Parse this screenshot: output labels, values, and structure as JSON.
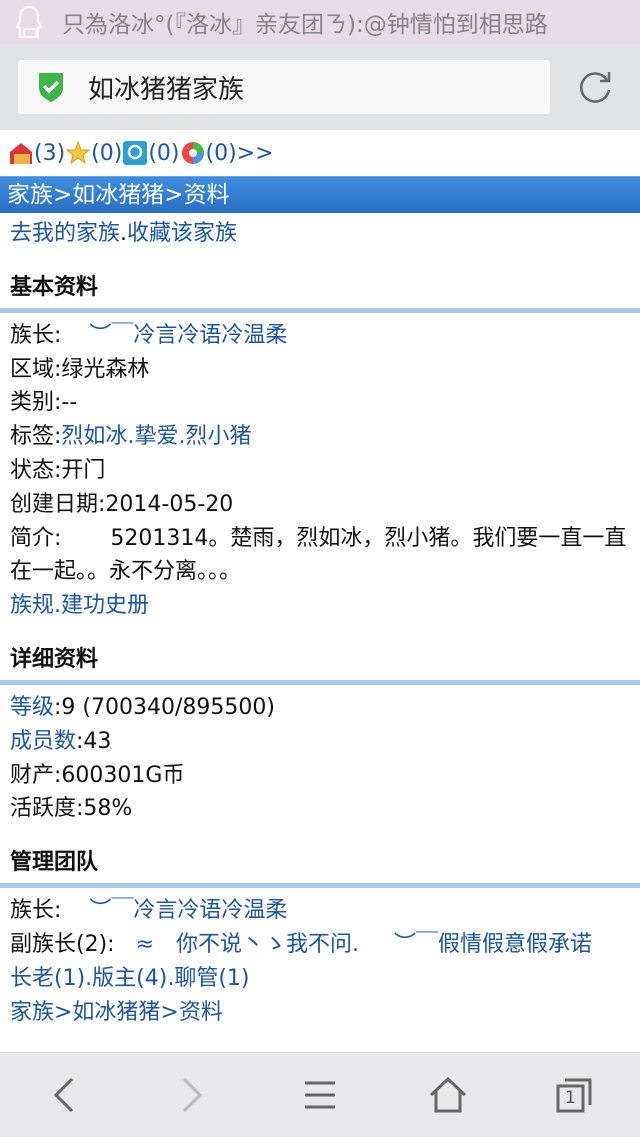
{
  "status_bar": {
    "notification": "只為洛冰°(『洛冰』亲友团ㄋ):@钟情怕到相思路",
    "icon": "qq-icon"
  },
  "url_bar": {
    "title": "如冰猪猪家族",
    "secure_icon": "shield-check-icon",
    "reload_icon": "reload-icon"
  },
  "icon_row": [
    {
      "icon": "house-mail-icon",
      "count": "(3)"
    },
    {
      "icon": "star-icon",
      "count": "(0)"
    },
    {
      "icon": "p-app-icon",
      "count": "(0)"
    },
    {
      "icon": "ball-icon",
      "count": "(0)"
    }
  ],
  "icon_row_more": ">>",
  "breadcrumb": "家族>如冰猪猪>资料",
  "top_links": {
    "my_family": "去我的家族",
    "sep": ".",
    "favorite": "收藏该家族"
  },
  "basic": {
    "header": "基本资料",
    "leader_label": "族长:",
    "leader": "︶￣冷言冷语冷温柔",
    "region": "区域:绿光森林",
    "category": "类别:--",
    "tags_label": "标签:",
    "tags": [
      "烈如冰",
      "挚爱",
      "烈小猪"
    ],
    "state": "状态:开门",
    "created": "创建日期:2014-05-20",
    "intro_label": "简介:",
    "intro": "5201314。楚雨，烈如冰，烈小猪。我们要一直一直在一起。。永不分离。。。",
    "rules": "族规",
    "history": "建功史册"
  },
  "detail": {
    "header": "详细资料",
    "level_label": "等级",
    "level": ":9 (700340/895500)",
    "members_label": "成员数",
    "members": ":43",
    "assets": "财产:600301G币",
    "activity": "活跃度:58%"
  },
  "team": {
    "header": "管理团队",
    "leader_label": "族长:",
    "leader": "︶￣冷言冷语冷温柔",
    "vice_label": "副族长(2):",
    "vice1": "≈　你不说丶ゝ我不问.",
    "vice2": "︶￣假情假意假承诺",
    "elders": "长老(1)",
    "mods": "版主(4)",
    "chat": "聊管(1)",
    "footer_crumb": "家族>如冰猪猪>资料"
  },
  "toolbar": [
    "back-icon",
    "forward-icon",
    "menu-icon",
    "home-icon",
    "tabs-icon"
  ],
  "tabs_count": "1",
  "colors": {
    "link": "#1d56a0",
    "breadcrumb_bar": "#2f78cc",
    "divider": "#a9c9ea"
  }
}
